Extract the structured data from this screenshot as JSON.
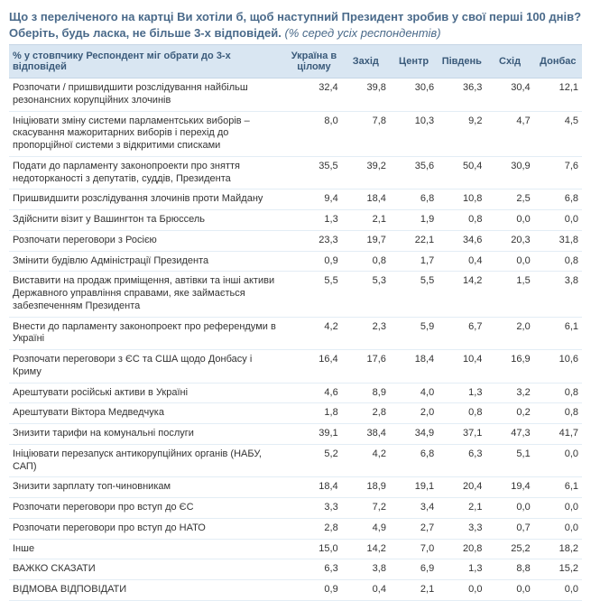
{
  "colors": {
    "heading": "#4a6a8a",
    "header_bg": "#d9e6f2",
    "header_text": "#3a5a7a",
    "row_border": "#e3edf5",
    "text": "#333333",
    "background": "#ffffff"
  },
  "question": {
    "main": "Що з переліченого на картці Ви хотіли б, щоб наступний Президент зробив у свої перші 100 днів? Оберіть, будь ласка, не більше 3-х відповідей.",
    "note": "(% серед усіх респондентів)"
  },
  "table": {
    "label_header": "% у стовпчику Респондент міг обрати до 3-х відповідей",
    "columns": [
      "Україна в цілому",
      "Захід",
      "Центр",
      "Південь",
      "Схід",
      "Донбас"
    ],
    "col_widths": {
      "label": 300,
      "data_first": 60,
      "data": 52
    },
    "font_size": 11,
    "header_font_size": 11,
    "rows": [
      {
        "label": "Розпочати / пришвидшити розслідування найбільш резонансних корупційних злочинів",
        "v": [
          "32,4",
          "39,8",
          "30,6",
          "36,3",
          "30,4",
          "12,1"
        ]
      },
      {
        "label": "Ініціювати зміну системи парламентських виборів – скасування мажоритарних виборів і перехід до пропорційної системи з відкритими списками",
        "v": [
          "8,0",
          "7,8",
          "10,3",
          "9,2",
          "4,7",
          "4,5"
        ]
      },
      {
        "label": "Подати до парламенту законопроекти про зняття недоторканості з депутатів, суддів, Президента",
        "v": [
          "35,5",
          "39,2",
          "35,6",
          "50,4",
          "30,9",
          "7,6"
        ]
      },
      {
        "label": "Пришвидшити розслідування злочинів проти Майдану",
        "v": [
          "9,4",
          "18,4",
          "6,8",
          "10,8",
          "2,5",
          "6,8"
        ]
      },
      {
        "label": "Здійснити візит у Вашингтон та Брюссель",
        "v": [
          "1,3",
          "2,1",
          "1,9",
          "0,8",
          "0,0",
          "0,0"
        ]
      },
      {
        "label": "Розпочати переговори з Росією",
        "v": [
          "23,3",
          "19,7",
          "22,1",
          "34,6",
          "20,3",
          "31,8"
        ]
      },
      {
        "label": "Змінити будівлю Адміністрації Президента",
        "v": [
          "0,9",
          "0,8",
          "1,7",
          "0,4",
          "0,0",
          "0,8"
        ]
      },
      {
        "label": "Виставити на продаж приміщення, автівки та інші активи Державного управління справами, яке займається забезпеченням Президента",
        "v": [
          "5,5",
          "5,3",
          "5,5",
          "14,2",
          "1,5",
          "3,8"
        ]
      },
      {
        "label": "Внести до парламенту законопроект про референдуми в Україні",
        "v": [
          "4,2",
          "2,3",
          "5,9",
          "6,7",
          "2,0",
          "6,1"
        ]
      },
      {
        "label": "Розпочати переговори з ЄС та США щодо Донбасу і Криму",
        "v": [
          "16,4",
          "17,6",
          "18,4",
          "10,4",
          "16,9",
          "10,6"
        ]
      },
      {
        "label": "Арештувати російські активи в Україні",
        "v": [
          "4,6",
          "8,9",
          "4,0",
          "1,3",
          "3,2",
          "0,8"
        ]
      },
      {
        "label": "Арештувати Віктора Медведчука",
        "v": [
          "1,8",
          "2,8",
          "2,0",
          "0,8",
          "0,2",
          "0,8"
        ]
      },
      {
        "label": "Знизити тарифи на комунальні послуги",
        "v": [
          "39,1",
          "38,4",
          "34,9",
          "37,1",
          "47,3",
          "41,7"
        ]
      },
      {
        "label": "Ініціювати перезапуск антикорупційних органів (НАБУ, САП)",
        "v": [
          "5,2",
          "4,2",
          "6,8",
          "6,3",
          "5,1",
          "0,0"
        ]
      },
      {
        "label": "Знизити зарплату топ-чиновникам",
        "v": [
          "18,4",
          "18,9",
          "19,1",
          "20,4",
          "19,4",
          "6,1"
        ]
      },
      {
        "label": "Розпочати переговори про вступ до ЄС",
        "v": [
          "3,3",
          "7,2",
          "3,4",
          "2,1",
          "0,0",
          "0,0"
        ]
      },
      {
        "label": "Розпочати переговори про вступ до НАТО",
        "v": [
          "2,8",
          "4,9",
          "2,7",
          "3,3",
          "0,7",
          "0,0"
        ]
      },
      {
        "label": "Інше",
        "v": [
          "15,0",
          "14,2",
          "7,0",
          "20,8",
          "25,2",
          "18,2"
        ]
      },
      {
        "label": "ВАЖКО СКАЗАТИ",
        "v": [
          "6,3",
          "3,8",
          "6,9",
          "1,3",
          "8,8",
          "15,2"
        ]
      },
      {
        "label": "ВІДМОВА ВІДПОВІДАТИ",
        "v": [
          "0,9",
          "0,4",
          "2,1",
          "0,0",
          "0,0",
          "0,0"
        ]
      }
    ]
  }
}
